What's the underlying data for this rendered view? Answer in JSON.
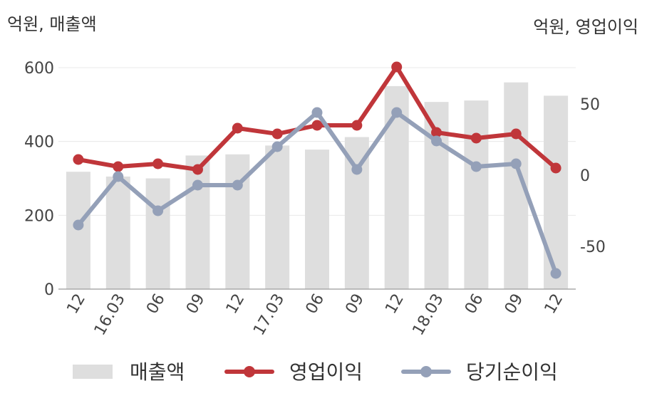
{
  "chart_data": {
    "type": "bar+line",
    "categories": [
      "12",
      "16.03",
      "06",
      "09",
      "12",
      "17.03",
      "06",
      "09",
      "12",
      "18.03",
      "06",
      "09",
      "12"
    ],
    "left_axis": {
      "label": "억원, 매출액",
      "ticks": [
        0,
        200,
        400,
        600
      ],
      "ylim": [
        0,
        600
      ]
    },
    "right_axis": {
      "label": "억원, 영업이익",
      "ticks": [
        -50,
        0,
        50
      ],
      "ylim": [
        -80,
        75
      ]
    },
    "series": [
      {
        "name": "매출액",
        "kind": "bar",
        "axis": "left",
        "color": "#dedede",
        "values": [
          318,
          305,
          300,
          362,
          365,
          389,
          378,
          412,
          550,
          507,
          511,
          560,
          524
        ]
      },
      {
        "name": "영업이익",
        "kind": "line",
        "axis": "right",
        "color": "#c0363a",
        "values": [
          11,
          6,
          8,
          4,
          33,
          29,
          35,
          35,
          76,
          30,
          26,
          29,
          5
        ]
      },
      {
        "name": "당기순이익",
        "kind": "line",
        "axis": "right",
        "color": "#94a0b8",
        "values": [
          -35,
          -1,
          -25,
          -7,
          -7,
          20,
          44,
          4,
          44,
          24,
          6,
          8,
          -69
        ]
      }
    ],
    "grid": true,
    "legend_position": "bottom"
  }
}
